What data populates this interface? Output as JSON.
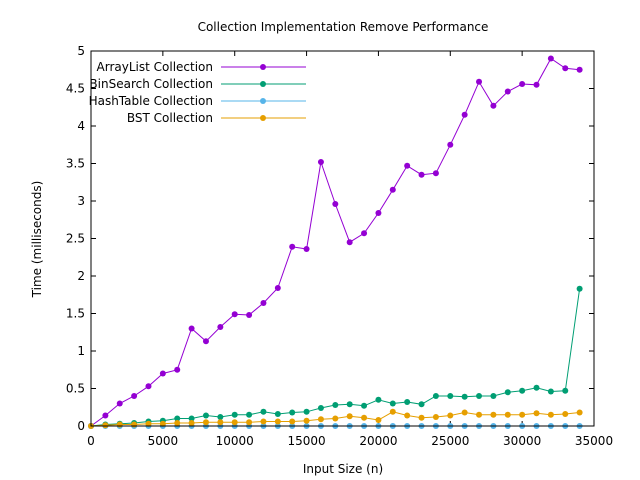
{
  "chart_data": {
    "type": "line",
    "title": "Collection Implementation Remove Performance",
    "xlabel": "Input Size (n)",
    "ylabel": "Time (milliseconds)",
    "xlim": [
      0,
      35000
    ],
    "ylim": [
      0,
      5
    ],
    "x_ticks": [
      0,
      5000,
      10000,
      15000,
      20000,
      25000,
      30000,
      35000
    ],
    "y_ticks": [
      0,
      0.5,
      1,
      1.5,
      2,
      2.5,
      3,
      3.5,
      4,
      4.5,
      5
    ],
    "x_tick_labels": [
      "0",
      "5000",
      "10000",
      "15000",
      "20000",
      "25000",
      "30000",
      "35000"
    ],
    "y_tick_labels": [
      "0",
      "0.5",
      "1",
      "1.5",
      "2",
      "2.5",
      "3",
      "3.5",
      "4",
      "4.5",
      "5"
    ],
    "grid": false,
    "legend_position": "top-left",
    "x": [
      0,
      1000,
      2000,
      3000,
      4000,
      5000,
      6000,
      7000,
      8000,
      9000,
      10000,
      11000,
      12000,
      13000,
      14000,
      15000,
      16000,
      17000,
      18000,
      19000,
      20000,
      21000,
      22000,
      23000,
      24000,
      25000,
      26000,
      27000,
      28000,
      29000,
      30000,
      31000,
      32000,
      33000,
      34000
    ],
    "series": [
      {
        "name": "ArrayList Collection",
        "color": "#9400d3",
        "values": [
          0.0,
          0.14,
          0.3,
          0.4,
          0.53,
          0.7,
          0.75,
          1.3,
          1.13,
          1.32,
          1.49,
          1.48,
          1.64,
          1.84,
          2.39,
          2.36,
          3.52,
          2.96,
          2.45,
          2.57,
          2.84,
          3.15,
          3.47,
          3.35,
          3.37,
          3.75,
          4.15,
          4.59,
          4.27,
          4.46,
          4.56,
          4.55,
          4.9,
          4.77,
          4.75
        ]
      },
      {
        "name": "BinSearch Collection",
        "color": "#009e73",
        "values": [
          0.0,
          0.02,
          0.03,
          0.04,
          0.06,
          0.07,
          0.1,
          0.1,
          0.14,
          0.12,
          0.15,
          0.15,
          0.19,
          0.16,
          0.18,
          0.19,
          0.24,
          0.28,
          0.29,
          0.27,
          0.35,
          0.3,
          0.32,
          0.29,
          0.4,
          0.4,
          0.39,
          0.4,
          0.4,
          0.45,
          0.47,
          0.51,
          0.46,
          0.47,
          1.83
        ]
      },
      {
        "name": "HashTable Collection",
        "color": "#56b4e9",
        "values": [
          0.0,
          0.0,
          0.0,
          0.0,
          0.0,
          0.0,
          0.0,
          0.0,
          0.0,
          0.0,
          0.0,
          0.0,
          0.0,
          0.0,
          0.0,
          0.0,
          0.0,
          0.0,
          0.0,
          0.0,
          0.0,
          0.0,
          0.0,
          0.0,
          0.0,
          0.0,
          0.0,
          0.0,
          0.0,
          0.0,
          0.0,
          0.0,
          0.0,
          0.0,
          0.0
        ]
      },
      {
        "name": "BST Collection",
        "color": "#e69f00",
        "values": [
          0.0,
          0.01,
          0.02,
          0.02,
          0.03,
          0.03,
          0.04,
          0.04,
          0.05,
          0.05,
          0.05,
          0.05,
          0.06,
          0.06,
          0.06,
          0.07,
          0.09,
          0.1,
          0.13,
          0.11,
          0.08,
          0.19,
          0.14,
          0.11,
          0.12,
          0.14,
          0.18,
          0.15,
          0.15,
          0.15,
          0.15,
          0.17,
          0.15,
          0.16,
          0.18
        ]
      }
    ]
  }
}
